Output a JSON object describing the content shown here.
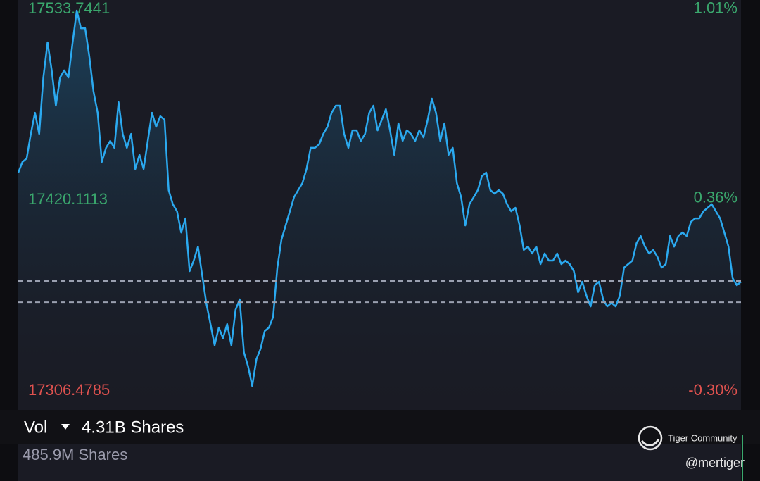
{
  "chart_data": {
    "type": "line",
    "ylim": [
      17295.2,
      17539.2
    ],
    "yticks": [
      17306.4785,
      17420.1113,
      17533.7441
    ],
    "y2lim": [
      -0.365,
      1.041
    ],
    "y2ticks": [
      {
        "value": -0.3,
        "label": "-0.30%"
      },
      {
        "value": 0.36,
        "label": "0.36%"
      },
      {
        "value": 1.01,
        "label": "1.01%"
      }
    ],
    "reference_lines": [
      17371.9,
      17359.3
    ],
    "color": "#2ba9ef",
    "up_color": "#3aa76d",
    "down_color": "#e0524f",
    "values": [
      17436.5,
      17442.8,
      17444.9,
      17459.5,
      17472.1,
      17459.5,
      17493.1,
      17514.0,
      17497.3,
      17476.3,
      17493.1,
      17497.3,
      17493.1,
      17514.0,
      17532.9,
      17522.4,
      17522.4,
      17505.7,
      17484.7,
      17472.1,
      17442.8,
      17451.2,
      17455.3,
      17451.2,
      17478.4,
      17459.5,
      17451.2,
      17459.5,
      17438.6,
      17447.0,
      17438.6,
      17455.3,
      17472.1,
      17463.7,
      17470.0,
      17467.9,
      17426.0,
      17417.6,
      17413.4,
      17400.8,
      17409.2,
      17377.8,
      17384.1,
      17392.4,
      17375.7,
      17358.9,
      17346.3,
      17333.7,
      17344.2,
      17337.9,
      17346.3,
      17333.7,
      17354.7,
      17361.0,
      17329.5,
      17321.2,
      17309.4,
      17325.4,
      17331.6,
      17342.1,
      17344.2,
      17350.5,
      17379.9,
      17396.6,
      17405.0,
      17413.4,
      17421.8,
      17426.0,
      17430.2,
      17438.6,
      17451.2,
      17451.2,
      17453.2,
      17459.5,
      17463.7,
      17472.1,
      17476.3,
      17476.3,
      17459.5,
      17451.2,
      17461.6,
      17461.6,
      17455.3,
      17459.5,
      17472.1,
      17476.3,
      17461.6,
      17467.9,
      17474.2,
      17461.6,
      17447.0,
      17465.8,
      17455.3,
      17461.6,
      17459.5,
      17455.3,
      17461.6,
      17457.4,
      17467.9,
      17480.5,
      17472.1,
      17455.3,
      17465.8,
      17447.0,
      17451.2,
      17430.2,
      17421.8,
      17405.0,
      17417.6,
      17421.8,
      17426.0,
      17434.4,
      17436.5,
      17426.0,
      17423.9,
      17426.0,
      17423.9,
      17417.6,
      17413.4,
      17415.5,
      17405.0,
      17390.4,
      17392.4,
      17388.3,
      17392.4,
      17382.0,
      17388.3,
      17384.1,
      17384.1,
      17388.3,
      17382.0,
      17384.1,
      17382.0,
      17377.8,
      17365.2,
      17371.5,
      17363.1,
      17356.8,
      17369.4,
      17371.5,
      17361.0,
      17356.8,
      17358.9,
      17356.8,
      17363.1,
      17379.9,
      17382.0,
      17384.1,
      17394.5,
      17398.7,
      17392.4,
      17388.3,
      17390.4,
      17386.2,
      17379.9,
      17382.0,
      17398.7,
      17392.4,
      17398.7,
      17400.8,
      17398.7,
      17407.1,
      17409.2,
      17409.2,
      17413.4,
      17415.5,
      17417.6,
      17413.4,
      17409.2,
      17400.8,
      17392.4,
      17373.6,
      17369.4,
      17371.5
    ]
  },
  "volume": {
    "label": "Vol",
    "total": "4.31B Shares",
    "current": "485.9M Shares"
  },
  "watermark": {
    "brand": "Tiger Community",
    "user": "@mertiger"
  }
}
